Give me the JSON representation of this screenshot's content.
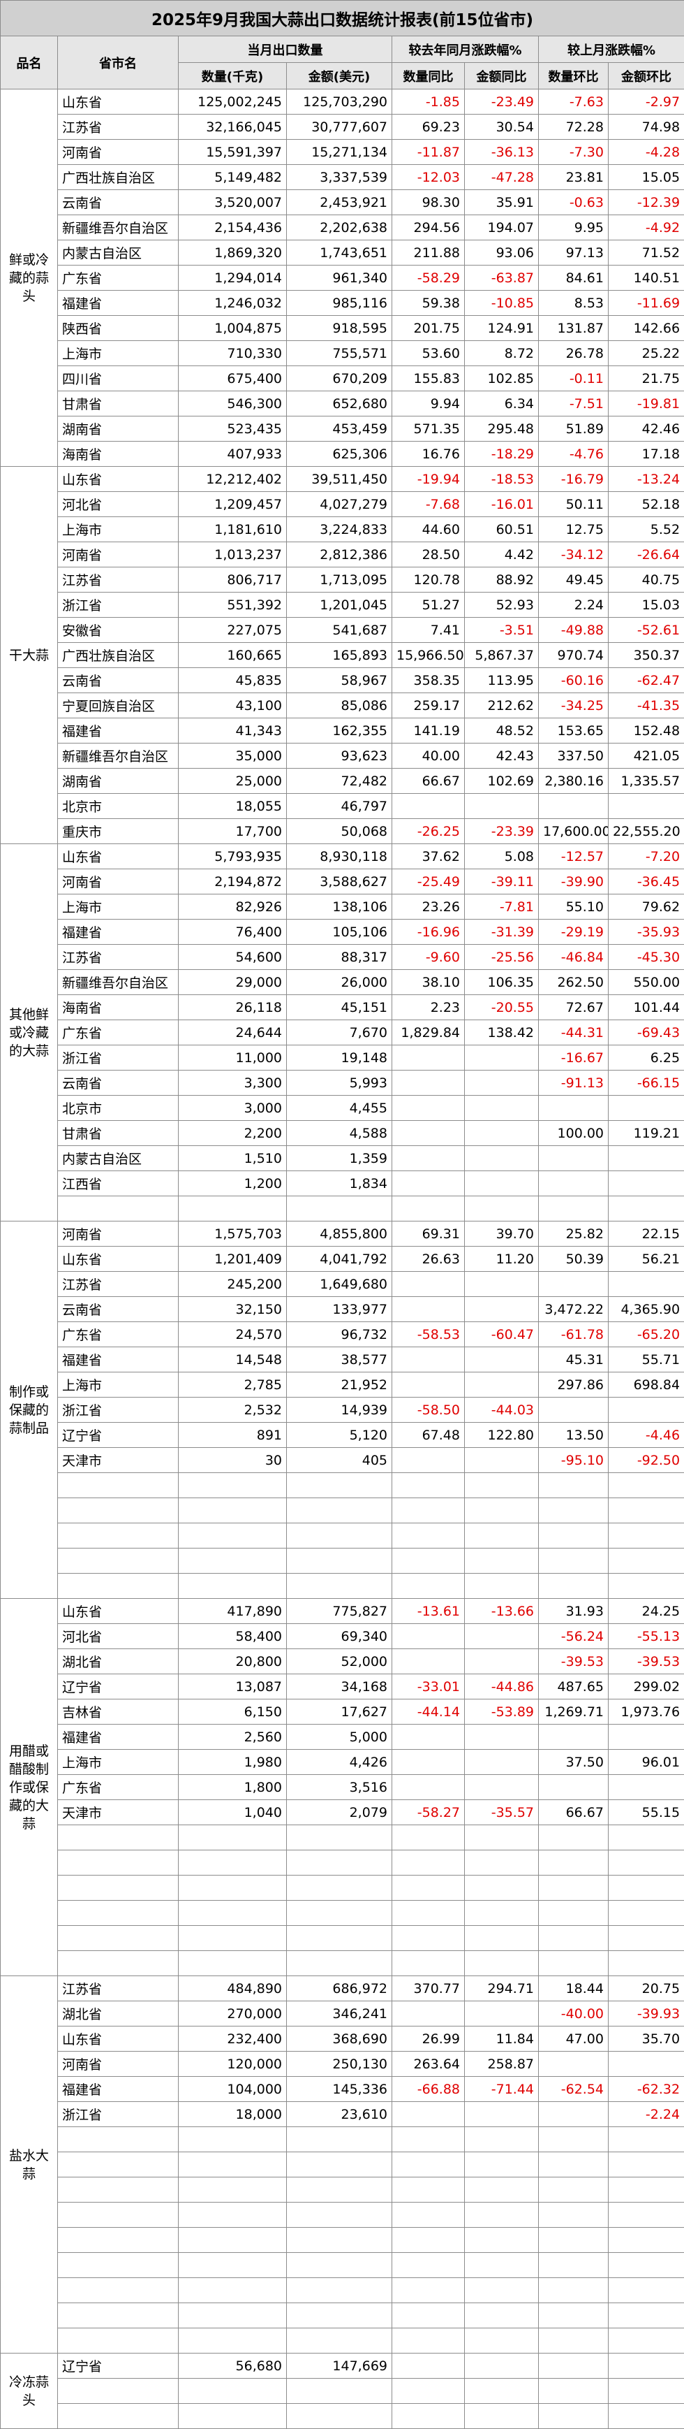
{
  "title": "2025年9月我国大蒜出口数据统计报表(前15位省市)",
  "header": {
    "name_columns": [
      "品名",
      "省市名"
    ],
    "groups": [
      "当月出口数量",
      "较去年同月涨跌幅%",
      "较上月涨跌幅%"
    ],
    "subcolumns": [
      "数量(千克)",
      "金额(美元)",
      "数量同比",
      "金额同比",
      "数量环比",
      "金额环比"
    ]
  },
  "sections": [
    {
      "name": "鲜或冷藏的蒜头",
      "rows": [
        [
          "山东省",
          "125,002,245",
          "125,703,290",
          "-1.85",
          "-23.49",
          "-7.63",
          "-2.97"
        ],
        [
          "江苏省",
          "32,166,045",
          "30,777,607",
          "69.23",
          "30.54",
          "72.28",
          "74.98"
        ],
        [
          "河南省",
          "15,591,397",
          "15,271,134",
          "-11.87",
          "-36.13",
          "-7.30",
          "-4.28"
        ],
        [
          "广西壮族自治区",
          "5,149,482",
          "3,337,539",
          "-12.03",
          "-47.28",
          "23.81",
          "15.05"
        ],
        [
          "云南省",
          "3,520,007",
          "2,453,921",
          "98.30",
          "35.91",
          "-0.63",
          "-12.39"
        ],
        [
          "新疆维吾尔自治区",
          "2,154,436",
          "2,202,638",
          "294.56",
          "194.07",
          "9.95",
          "-4.92"
        ],
        [
          "内蒙古自治区",
          "1,869,320",
          "1,743,651",
          "211.88",
          "93.06",
          "97.13",
          "71.52"
        ],
        [
          "广东省",
          "1,294,014",
          "961,340",
          "-58.29",
          "-63.87",
          "84.61",
          "140.51"
        ],
        [
          "福建省",
          "1,246,032",
          "985,116",
          "59.38",
          "-10.85",
          "8.53",
          "-11.69"
        ],
        [
          "陕西省",
          "1,004,875",
          "918,595",
          "201.75",
          "124.91",
          "131.87",
          "142.66"
        ],
        [
          "上海市",
          "710,330",
          "755,571",
          "53.60",
          "8.72",
          "26.78",
          "25.22"
        ],
        [
          "四川省",
          "675,400",
          "670,209",
          "155.83",
          "102.85",
          "-0.11",
          "21.75"
        ],
        [
          "甘肃省",
          "546,300",
          "652,680",
          "9.94",
          "6.34",
          "-7.51",
          "-19.81"
        ],
        [
          "湖南省",
          "523,435",
          "453,459",
          "571.35",
          "295.48",
          "51.89",
          "42.46"
        ],
        [
          "海南省",
          "407,933",
          "625,306",
          "16.76",
          "-18.29",
          "-4.76",
          "17.18"
        ]
      ]
    },
    {
      "name": "干大蒜",
      "rows": [
        [
          "山东省",
          "12,212,402",
          "39,511,450",
          "-19.94",
          "-18.53",
          "-16.79",
          "-13.24"
        ],
        [
          "河北省",
          "1,209,457",
          "4,027,279",
          "-7.68",
          "-16.01",
          "50.11",
          "52.18"
        ],
        [
          "上海市",
          "1,181,610",
          "3,224,833",
          "44.60",
          "60.51",
          "12.75",
          "5.52"
        ],
        [
          "河南省",
          "1,013,237",
          "2,812,386",
          "28.50",
          "4.42",
          "-34.12",
          "-26.64"
        ],
        [
          "江苏省",
          "806,717",
          "1,713,095",
          "120.78",
          "88.92",
          "49.45",
          "40.75"
        ],
        [
          "浙江省",
          "551,392",
          "1,201,045",
          "51.27",
          "52.93",
          "2.24",
          "15.03"
        ],
        [
          "安徽省",
          "227,075",
          "541,687",
          "7.41",
          "-3.51",
          "-49.88",
          "-52.61"
        ],
        [
          "广西壮族自治区",
          "160,665",
          "165,893",
          "15,966.50",
          "5,867.37",
          "970.74",
          "350.37"
        ],
        [
          "云南省",
          "45,835",
          "58,967",
          "358.35",
          "113.95",
          "-60.16",
          "-62.47"
        ],
        [
          "宁夏回族自治区",
          "43,100",
          "85,086",
          "259.17",
          "212.62",
          "-34.25",
          "-41.35"
        ],
        [
          "福建省",
          "41,343",
          "162,355",
          "141.19",
          "48.52",
          "153.65",
          "152.48"
        ],
        [
          "新疆维吾尔自治区",
          "35,000",
          "93,623",
          "40.00",
          "42.43",
          "337.50",
          "421.05"
        ],
        [
          "湖南省",
          "25,000",
          "72,482",
          "66.67",
          "102.69",
          "2,380.16",
          "1,335.57"
        ],
        [
          "北京市",
          "18,055",
          "46,797",
          null,
          null,
          null,
          null
        ],
        [
          "重庆市",
          "17,700",
          "50,068",
          "-26.25",
          "-23.39",
          "17,600.00",
          "22,555.20"
        ]
      ]
    },
    {
      "name": "其他鲜或冷藏的大蒜",
      "rows": [
        [
          "山东省",
          "5,793,935",
          "8,930,118",
          "37.62",
          "5.08",
          "-12.57",
          "-7.20"
        ],
        [
          "河南省",
          "2,194,872",
          "3,588,627",
          "-25.49",
          "-39.11",
          "-39.90",
          "-36.45"
        ],
        [
          "上海市",
          "82,926",
          "138,106",
          "23.26",
          "-7.81",
          "55.10",
          "79.62"
        ],
        [
          "福建省",
          "76,400",
          "105,106",
          "-16.96",
          "-31.39",
          "-29.19",
          "-35.93"
        ],
        [
          "江苏省",
          "54,600",
          "88,317",
          "-9.60",
          "-25.56",
          "-46.84",
          "-45.30"
        ],
        [
          "新疆维吾尔自治区",
          "29,000",
          "26,000",
          "38.10",
          "106.35",
          "262.50",
          "550.00"
        ],
        [
          "海南省",
          "26,118",
          "45,151",
          "2.23",
          "-20.55",
          "72.67",
          "101.44"
        ],
        [
          "广东省",
          "24,644",
          "7,670",
          "1,829.84",
          "138.42",
          "-44.31",
          "-69.43"
        ],
        [
          "浙江省",
          "11,000",
          "19,148",
          null,
          null,
          "-16.67",
          "6.25"
        ],
        [
          "云南省",
          "3,300",
          "5,993",
          null,
          null,
          "-91.13",
          "-66.15"
        ],
        [
          "北京市",
          "3,000",
          "4,455",
          null,
          null,
          null,
          null
        ],
        [
          "甘肃省",
          "2,200",
          "4,588",
          null,
          null,
          "100.00",
          "119.21"
        ],
        [
          "内蒙古自治区",
          "1,510",
          "1,359",
          null,
          null,
          null,
          null
        ],
        [
          "江西省",
          "1,200",
          "1,834",
          null,
          null,
          null,
          null
        ]
      ]
    },
    {
      "name": "制作或保藏的蒜制品",
      "rows": [
        [
          "河南省",
          "1,575,703",
          "4,855,800",
          "69.31",
          "39.70",
          "25.82",
          "22.15"
        ],
        [
          "山东省",
          "1,201,409",
          "4,041,792",
          "26.63",
          "11.20",
          "50.39",
          "56.21"
        ],
        [
          "江苏省",
          "245,200",
          "1,649,680",
          null,
          null,
          null,
          null
        ],
        [
          "云南省",
          "32,150",
          "133,977",
          null,
          null,
          "3,472.22",
          "4,365.90"
        ],
        [
          "广东省",
          "24,570",
          "96,732",
          "-58.53",
          "-60.47",
          "-61.78",
          "-65.20"
        ],
        [
          "福建省",
          "14,548",
          "38,577",
          null,
          null,
          "45.31",
          "55.71"
        ],
        [
          "上海市",
          "2,785",
          "21,952",
          null,
          null,
          "297.86",
          "698.84"
        ],
        [
          "浙江省",
          "2,532",
          "14,939",
          "-58.50",
          "-44.03",
          null,
          null
        ],
        [
          "辽宁省",
          "891",
          "5,120",
          "67.48",
          "122.80",
          "13.50",
          "-4.46"
        ],
        [
          "天津市",
          "30",
          "405",
          null,
          null,
          "-95.10",
          "-92.50"
        ]
      ]
    },
    {
      "name": "用醋或醋酸制作或保藏的大蒜",
      "rows": [
        [
          "山东省",
          "417,890",
          "775,827",
          "-13.61",
          "-13.66",
          "31.93",
          "24.25"
        ],
        [
          "河北省",
          "58,400",
          "69,340",
          null,
          null,
          "-56.24",
          "-55.13"
        ],
        [
          "湖北省",
          "20,800",
          "52,000",
          null,
          null,
          "-39.53",
          "-39.53"
        ],
        [
          "辽宁省",
          "13,087",
          "34,168",
          "-33.01",
          "-44.86",
          "487.65",
          "299.02"
        ],
        [
          "吉林省",
          "6,150",
          "17,627",
          "-44.14",
          "-53.89",
          "1,269.71",
          "1,973.76"
        ],
        [
          "福建省",
          "2,560",
          "5,000",
          null,
          null,
          null,
          null
        ],
        [
          "上海市",
          "1,980",
          "4,426",
          null,
          null,
          "37.50",
          "96.01"
        ],
        [
          "广东省",
          "1,800",
          "3,516",
          null,
          null,
          null,
          null
        ],
        [
          "天津市",
          "1,040",
          "2,079",
          "-58.27",
          "-35.57",
          "66.67",
          "55.15"
        ]
      ]
    },
    {
      "name": "盐水大蒜",
      "rows": [
        [
          "江苏省",
          "484,890",
          "686,972",
          "370.77",
          "294.71",
          "18.44",
          "20.75"
        ],
        [
          "湖北省",
          "270,000",
          "346,241",
          null,
          null,
          "-40.00",
          "-39.93"
        ],
        [
          "山东省",
          "232,400",
          "368,690",
          "26.99",
          "11.84",
          "47.00",
          "35.70"
        ],
        [
          "河南省",
          "120,000",
          "250,130",
          "263.64",
          "258.87",
          null,
          null
        ],
        [
          "福建省",
          "104,000",
          "145,336",
          "-66.88",
          "-71.44",
          "-62.54",
          "-62.32"
        ],
        [
          "浙江省",
          "18,000",
          "23,610",
          null,
          null,
          null,
          "-2.24"
        ]
      ]
    },
    {
      "name": "冷冻蒜头",
      "rows": [
        [
          "辽宁省",
          "56,680",
          "147,669",
          null,
          null,
          null,
          null
        ]
      ]
    }
  ]
}
